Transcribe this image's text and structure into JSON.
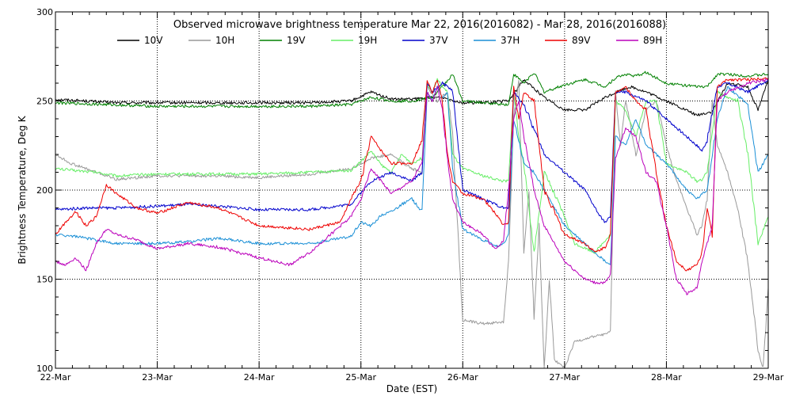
{
  "chart_data": {
    "type": "line",
    "title": "Observed microwave brightness temperature Mar 22, 2016(2016082) - Mar 28, 2016(2016088)",
    "xlabel": "Date (EST)",
    "ylabel": "Brightness Temperature, Deg K",
    "xlim": [
      0,
      7
    ],
    "ylim": [
      100,
      300
    ],
    "x_ticks": [
      {
        "value": 0,
        "label": "22-Mar"
      },
      {
        "value": 1,
        "label": "23-Mar"
      },
      {
        "value": 2,
        "label": "24-Mar"
      },
      {
        "value": 3,
        "label": "25-Mar"
      },
      {
        "value": 4,
        "label": "26-Mar"
      },
      {
        "value": 5,
        "label": "27-Mar"
      },
      {
        "value": 6,
        "label": "28-Mar"
      },
      {
        "value": 7,
        "label": "29-Mar"
      }
    ],
    "y_ticks": [
      {
        "value": 100,
        "label": "100"
      },
      {
        "value": 150,
        "label": "150"
      },
      {
        "value": 200,
        "label": "200"
      },
      {
        "value": 250,
        "label": "250"
      },
      {
        "value": 300,
        "label": "300"
      }
    ],
    "grid": "dotted",
    "series": [
      {
        "name": "10V",
        "color": "#000000",
        "x": [
          0,
          0.3,
          0.6,
          1,
          1.5,
          2,
          2.5,
          2.9,
          3.1,
          3.3,
          3.5,
          3.7,
          3.8,
          4,
          4.2,
          4.45,
          4.6,
          4.8,
          5,
          5.2,
          5.4,
          5.55,
          5.65,
          5.8,
          6,
          6.3,
          6.45,
          6.6,
          6.8,
          6.9,
          7
        ],
        "y": [
          251,
          250,
          249,
          249,
          249,
          249,
          249,
          250,
          255,
          251,
          251,
          252,
          252,
          249,
          249,
          250,
          262,
          252,
          245,
          245,
          252,
          256,
          258,
          255,
          250,
          242,
          244,
          260,
          258,
          245,
          262
        ]
      },
      {
        "name": "10H",
        "color": "#999999",
        "x": [
          0,
          0.15,
          0.3,
          0.5,
          0.6,
          1,
          1.5,
          2,
          2.5,
          2.9,
          3.1,
          3.3,
          3.5,
          3.6,
          3.65,
          3.75,
          3.85,
          3.9,
          4,
          4.2,
          4.4,
          4.45,
          4.5,
          4.55,
          4.6,
          4.65,
          4.7,
          4.75,
          4.8,
          4.85,
          4.9,
          5,
          5.1,
          5.3,
          5.45,
          5.5,
          5.55,
          5.6,
          5.7,
          5.8,
          5.9,
          6,
          6.1,
          6.2,
          6.3,
          6.35,
          6.4,
          6.45,
          6.5,
          6.6,
          6.7,
          6.8,
          6.9,
          6.95,
          7
        ],
        "y": [
          220,
          215,
          212,
          208,
          206,
          208,
          208,
          207,
          209,
          212,
          218,
          220,
          212,
          210,
          258,
          250,
          255,
          232,
          127,
          125,
          126,
          160,
          240,
          262,
          165,
          200,
          128,
          180,
          100,
          150,
          105,
          100,
          115,
          118,
          120,
          255,
          225,
          250,
          220,
          245,
          250,
          225,
          205,
          190,
          175,
          180,
          195,
          250,
          225,
          210,
          190,
          160,
          110,
          100,
          145
        ]
      },
      {
        "name": "19V",
        "color": "#008000",
        "x": [
          0,
          0.5,
          1,
          1.5,
          2,
          2.5,
          2.9,
          3.1,
          3.3,
          3.5,
          3.7,
          3.8,
          3.9,
          4,
          4.2,
          4.45,
          4.5,
          4.6,
          4.7,
          4.8,
          5,
          5.2,
          5.4,
          5.5,
          5.6,
          5.7,
          5.8,
          6,
          6.3,
          6.4,
          6.5,
          6.6,
          6.8,
          7
        ],
        "y": [
          249,
          248,
          247,
          247,
          247,
          247,
          248,
          252,
          250,
          250,
          252,
          258,
          265,
          250,
          249,
          248,
          265,
          260,
          266,
          255,
          259,
          262,
          258,
          263,
          265,
          264,
          266,
          260,
          258,
          258,
          265,
          265,
          264,
          265
        ]
      },
      {
        "name": "19H",
        "color": "#66ee66",
        "x": [
          0,
          0.2,
          0.4,
          0.6,
          1,
          1.5,
          2,
          2.5,
          2.9,
          3,
          3.1,
          3.2,
          3.3,
          3.4,
          3.5,
          3.6,
          3.65,
          3.7,
          3.75,
          3.8,
          3.85,
          3.9,
          4,
          4.2,
          4.4,
          4.45,
          4.5,
          4.55,
          4.6,
          4.7,
          4.8,
          5,
          5.1,
          5.3,
          5.4,
          5.45,
          5.5,
          5.6,
          5.7,
          5.8,
          5.9,
          6,
          6.2,
          6.3,
          6.35,
          6.4,
          6.5,
          6.6,
          6.7,
          6.8,
          6.9,
          7
        ],
        "y": [
          212,
          211,
          210,
          208,
          209,
          209,
          209,
          210,
          211,
          216,
          222,
          214,
          210,
          220,
          215,
          218,
          260,
          255,
          262,
          258,
          255,
          220,
          212,
          208,
          205,
          205,
          255,
          230,
          215,
          165,
          210,
          185,
          170,
          165,
          172,
          175,
          250,
          245,
          230,
          250,
          250,
          215,
          210,
          205,
          206,
          210,
          255,
          252,
          250,
          220,
          170,
          185
        ]
      },
      {
        "name": "37V",
        "color": "#0000cc",
        "x": [
          0,
          0.3,
          0.6,
          1,
          1.3,
          1.6,
          2,
          2.5,
          2.9,
          3.1,
          3.3,
          3.5,
          3.6,
          3.65,
          3.7,
          3.8,
          3.9,
          4,
          4.2,
          4.4,
          4.45,
          4.5,
          4.6,
          4.8,
          5,
          5.2,
          5.35,
          5.4,
          5.45,
          5.5,
          5.6,
          5.8,
          6,
          6.2,
          6.3,
          6.35,
          6.4,
          6.5,
          6.6,
          6.8,
          7
        ],
        "y": [
          189,
          190,
          190,
          191,
          192,
          191,
          189,
          189,
          192,
          205,
          210,
          205,
          210,
          260,
          255,
          260,
          256,
          200,
          195,
          190,
          190,
          255,
          248,
          220,
          210,
          200,
          185,
          182,
          185,
          255,
          255,
          250,
          240,
          230,
          225,
          222,
          228,
          258,
          260,
          255,
          262
        ]
      },
      {
        "name": "37H",
        "color": "#1a8fd6",
        "x": [
          0,
          0.2,
          0.4,
          0.6,
          1,
          1.3,
          1.6,
          2,
          2.5,
          2.9,
          3,
          3.1,
          3.2,
          3.3,
          3.4,
          3.5,
          3.6,
          3.65,
          3.7,
          3.75,
          3.8,
          3.85,
          3.9,
          4,
          4.2,
          4.35,
          4.4,
          4.45,
          4.5,
          4.6,
          4.7,
          4.8,
          5,
          5.2,
          5.3,
          5.4,
          5.45,
          5.5,
          5.6,
          5.7,
          5.8,
          6,
          6.2,
          6.3,
          6.4,
          6.5,
          6.6,
          6.8,
          6.9,
          7
        ],
        "y": [
          175,
          174,
          172,
          170,
          170,
          171,
          173,
          170,
          170,
          174,
          182,
          180,
          186,
          188,
          192,
          195,
          188,
          255,
          250,
          258,
          252,
          255,
          212,
          178,
          172,
          168,
          170,
          175,
          240,
          215,
          210,
          200,
          180,
          170,
          165,
          160,
          158,
          230,
          225,
          240,
          225,
          215,
          200,
          195,
          200,
          240,
          258,
          248,
          210,
          220
        ]
      },
      {
        "name": "89V",
        "color": "#ee0000",
        "x": [
          0,
          0.1,
          0.2,
          0.3,
          0.4,
          0.5,
          0.6,
          0.8,
          1,
          1.3,
          1.6,
          2,
          2.5,
          2.8,
          2.9,
          3,
          3.1,
          3.2,
          3.3,
          3.5,
          3.6,
          3.65,
          3.7,
          3.75,
          3.8,
          3.85,
          3.9,
          4,
          4.2,
          4.35,
          4.4,
          4.45,
          4.5,
          4.55,
          4.6,
          4.7,
          4.8,
          5,
          5.2,
          5.3,
          5.4,
          5.45,
          5.5,
          5.6,
          5.7,
          5.8,
          5.9,
          6,
          6.1,
          6.2,
          6.3,
          6.35,
          6.4,
          6.45,
          6.5,
          6.6,
          6.8,
          7
        ],
        "y": [
          175,
          182,
          188,
          180,
          185,
          203,
          198,
          190,
          187,
          193,
          190,
          180,
          178,
          182,
          195,
          205,
          230,
          222,
          215,
          215,
          228,
          262,
          255,
          262,
          250,
          220,
          205,
          198,
          195,
          185,
          180,
          182,
          258,
          240,
          255,
          250,
          200,
          175,
          170,
          165,
          168,
          175,
          255,
          258,
          250,
          245,
          210,
          180,
          160,
          155,
          158,
          165,
          190,
          175,
          258,
          262,
          262,
          263
        ]
      },
      {
        "name": "89H",
        "color": "#bb00bb",
        "x": [
          0,
          0.1,
          0.2,
          0.3,
          0.4,
          0.5,
          0.6,
          0.8,
          1,
          1.3,
          1.6,
          2,
          2.3,
          2.5,
          2.8,
          2.9,
          3,
          3.1,
          3.2,
          3.3,
          3.5,
          3.6,
          3.65,
          3.7,
          3.75,
          3.8,
          3.85,
          3.9,
          4,
          4.2,
          4.3,
          4.35,
          4.4,
          4.45,
          4.5,
          4.55,
          4.6,
          4.7,
          4.8,
          5,
          5.2,
          5.3,
          5.4,
          5.45,
          5.5,
          5.6,
          5.7,
          5.8,
          5.9,
          6,
          6.1,
          6.2,
          6.3,
          6.35,
          6.4,
          6.45,
          6.5,
          6.6,
          6.8,
          7
        ],
        "y": [
          160,
          158,
          162,
          155,
          170,
          178,
          175,
          172,
          167,
          170,
          168,
          162,
          158,
          165,
          180,
          185,
          195,
          212,
          205,
          198,
          205,
          215,
          255,
          250,
          258,
          245,
          218,
          195,
          182,
          175,
          168,
          168,
          172,
          200,
          240,
          250,
          230,
          200,
          180,
          160,
          150,
          148,
          148,
          152,
          218,
          235,
          230,
          210,
          205,
          180,
          150,
          142,
          145,
          160,
          170,
          180,
          250,
          255,
          260,
          262
        ]
      }
    ]
  }
}
